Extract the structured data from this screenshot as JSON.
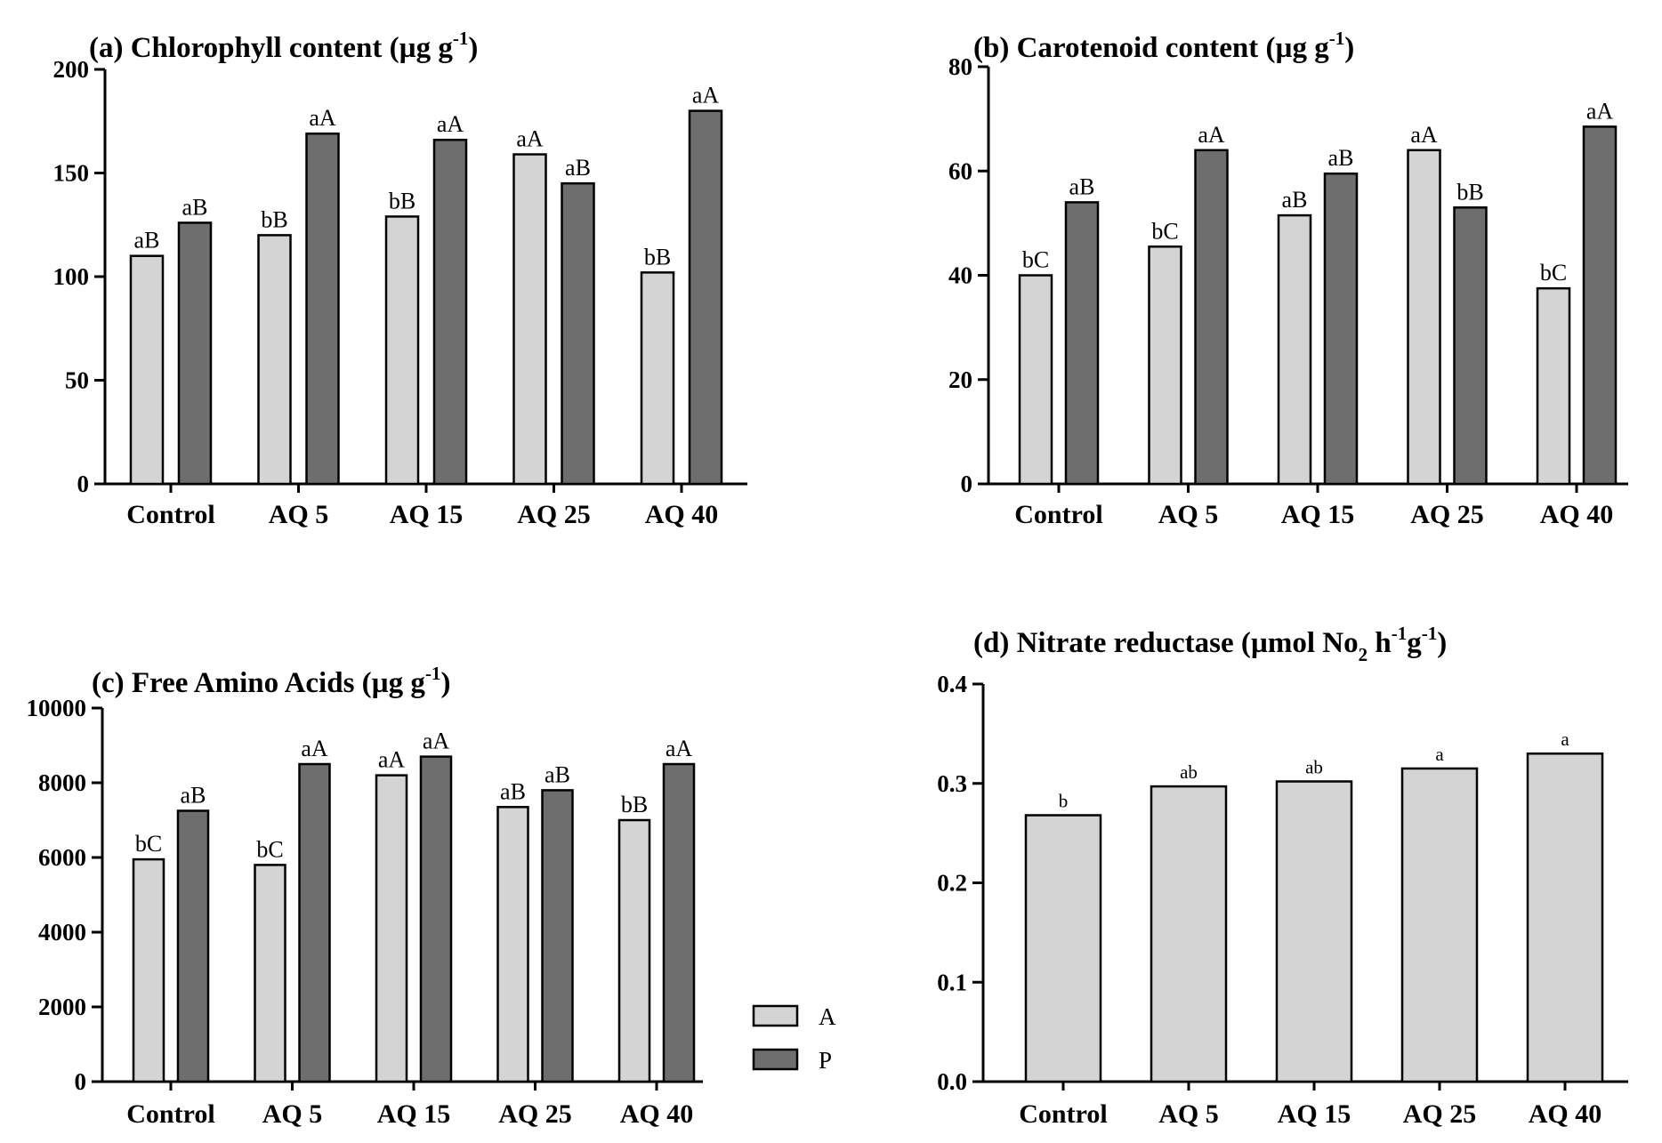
{
  "colors": {
    "A": "#d4d4d4",
    "P": "#6e6e6e"
  },
  "legend": {
    "items": [
      {
        "key": "A",
        "label": "A"
      },
      {
        "key": "P",
        "label": "P"
      }
    ]
  },
  "chart_data": [
    {
      "id": "chlorophyll",
      "type": "bar",
      "title": {
        "main": "(a)  Chlorophyll content (µg g",
        "sup": "-1",
        "close": ")"
      },
      "categories": [
        "Control",
        "AQ 5",
        "AQ 15",
        "AQ 25",
        "AQ 40"
      ],
      "ylim": [
        0,
        200
      ],
      "yticks": [
        0,
        50,
        100,
        150,
        200
      ],
      "series": [
        {
          "name": "A",
          "values": [
            110,
            120,
            129,
            159,
            102
          ],
          "labels": [
            "aB",
            "bB",
            "bB",
            "aA",
            "bB"
          ]
        },
        {
          "name": "P",
          "values": [
            126,
            169,
            166,
            145,
            180
          ],
          "labels": [
            "aB",
            "aA",
            "aA",
            "aB",
            "aA"
          ]
        }
      ]
    },
    {
      "id": "carotenoid",
      "type": "bar",
      "title": {
        "main": "(b) Carotenoid content (µg g",
        "sup": "-1",
        "close": ")"
      },
      "categories": [
        "Control",
        "AQ 5",
        "AQ 15",
        "AQ 25",
        "AQ 40"
      ],
      "ylim": [
        0,
        80
      ],
      "yticks": [
        0,
        20,
        40,
        60,
        80
      ],
      "series": [
        {
          "name": "A",
          "values": [
            40,
            45.5,
            51.5,
            64,
            37.5
          ],
          "labels": [
            "bC",
            "bC",
            "aB",
            "aA",
            "bC"
          ]
        },
        {
          "name": "P",
          "values": [
            54,
            64,
            59.5,
            53,
            68.5
          ],
          "labels": [
            "aB",
            "aA",
            "aB",
            "bB",
            "aA"
          ]
        }
      ]
    },
    {
      "id": "amino",
      "type": "bar",
      "title": {
        "main": "(c) Free Amino Acids (µg g",
        "sup": "-1",
        "close": ")"
      },
      "categories": [
        "Control",
        "AQ 5",
        "AQ 15",
        "AQ 25",
        "AQ 40"
      ],
      "ylim": [
        0,
        10000
      ],
      "yticks": [
        0,
        2000,
        4000,
        6000,
        8000,
        10000
      ],
      "series": [
        {
          "name": "A",
          "values": [
            5950,
            5800,
            8200,
            7350,
            7000
          ],
          "labels": [
            "bC",
            "bC",
            "aA",
            "aB",
            "bB"
          ]
        },
        {
          "name": "P",
          "values": [
            7250,
            8500,
            8700,
            7800,
            8500
          ],
          "labels": [
            "aB",
            "aA",
            "aA",
            "aB",
            "aA"
          ]
        }
      ]
    },
    {
      "id": "nitrate",
      "type": "bar",
      "title": {
        "main": "(d) Nitrate reductase (µmol No",
        "sub": "2",
        "mid": " h",
        "sup": "-1",
        "mid2": "g",
        "sup2": "-1",
        "close": ")"
      },
      "categories": [
        "Control",
        "AQ 5",
        "AQ 15",
        "AQ 25",
        "AQ 40"
      ],
      "ylim": [
        0,
        0.4
      ],
      "yticks": [
        0.0,
        0.1,
        0.2,
        0.3,
        0.4
      ],
      "tick_decimals": 1,
      "series": [
        {
          "name": "A",
          "values": [
            0.268,
            0.297,
            0.302,
            0.315,
            0.33
          ],
          "labels": [
            "b",
            "ab",
            "ab",
            "a",
            "a"
          ]
        }
      ]
    }
  ]
}
